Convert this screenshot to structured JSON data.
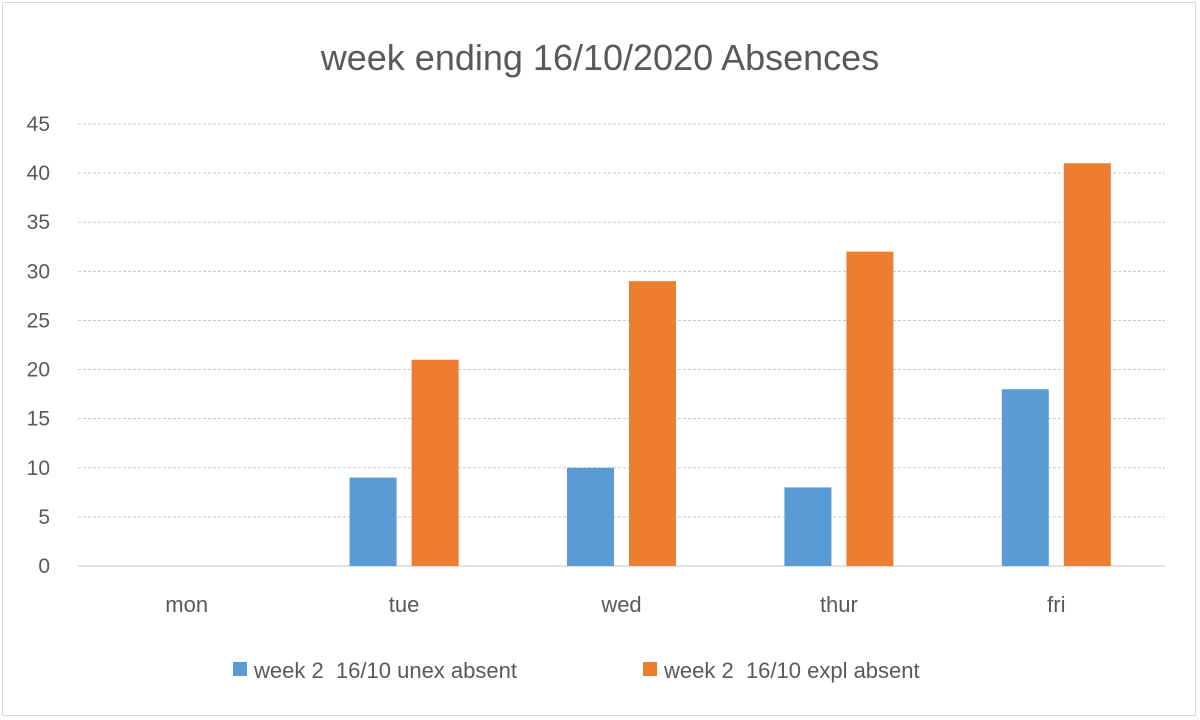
{
  "chart_data": {
    "type": "bar",
    "title": "week ending 16/10/2020 Absences",
    "categories": [
      "mon",
      "tue",
      "wed",
      "thur",
      "fri"
    ],
    "series": [
      {
        "name": "week 2  16/10 unex absent",
        "color": "#5b9bd5",
        "values": [
          0,
          9,
          10,
          8,
          18
        ]
      },
      {
        "name": "week 2  16/10 expl absent",
        "color": "#ed7d31",
        "values": [
          0,
          21,
          29,
          32,
          41
        ]
      }
    ],
    "ylim": [
      0,
      45
    ],
    "yticks": [
      0,
      5,
      10,
      15,
      20,
      25,
      30,
      35,
      40,
      45
    ],
    "grid": true,
    "legend_position": "bottom"
  }
}
